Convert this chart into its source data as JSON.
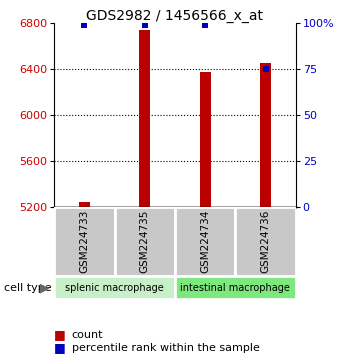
{
  "title": "GDS2982 / 1456566_x_at",
  "samples": [
    "GSM224733",
    "GSM224735",
    "GSM224734",
    "GSM224736"
  ],
  "counts": [
    5240,
    6740,
    6370,
    6450
  ],
  "percentiles": [
    99,
    99,
    99,
    75
  ],
  "ylim_left": [
    5200,
    6800
  ],
  "ylim_right": [
    0,
    100
  ],
  "yticks_left": [
    5200,
    5600,
    6000,
    6400,
    6800
  ],
  "yticks_right": [
    0,
    25,
    50,
    75,
    100
  ],
  "bar_color": "#bb0000",
  "dot_color": "#0000bb",
  "bar_width": 0.18,
  "group1_label": "splenic macrophage",
  "group1_color": "#c8f0c8",
  "group2_label": "intestinal macrophage",
  "group2_color": "#7de87d",
  "sample_box_color": "#c8c8c8",
  "cell_type_label": "cell type",
  "legend_count_label": "count",
  "legend_pct_label": "percentile rank within the sample",
  "axis_label_color_left": "#cc0000",
  "axis_label_color_right": "#0000cc",
  "grid_color": "#000000",
  "background_color": "#ffffff"
}
